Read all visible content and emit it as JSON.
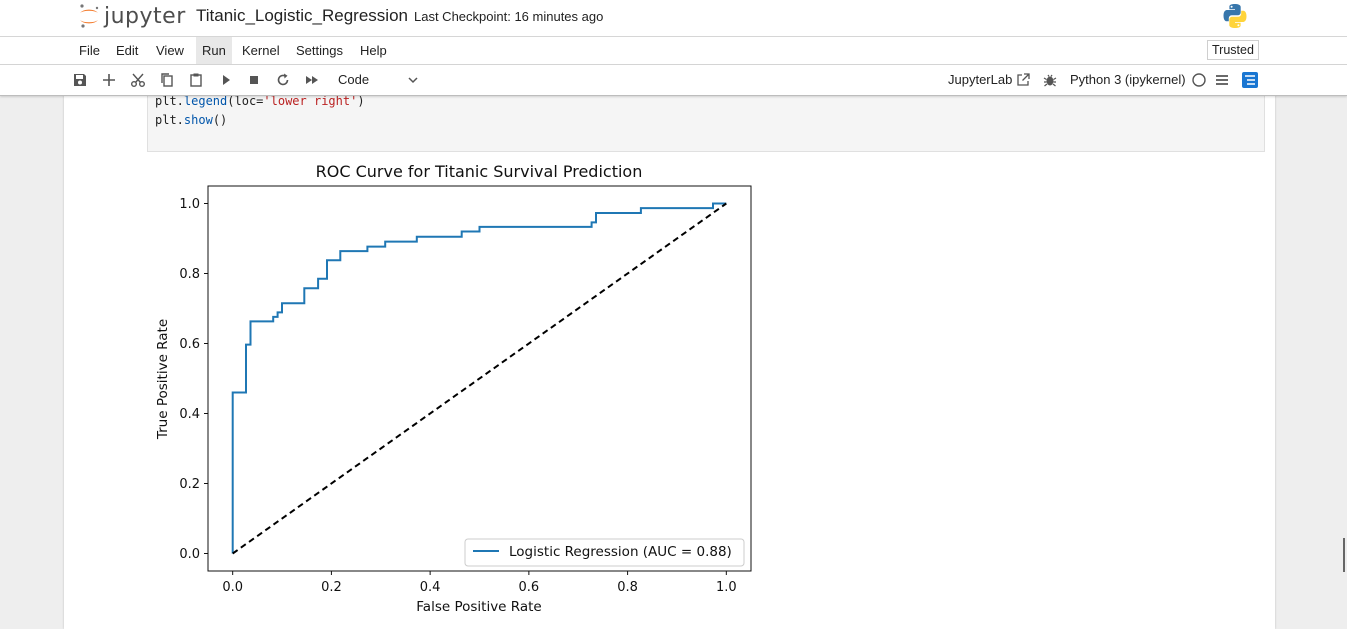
{
  "header": {
    "logo_text": "jupyter",
    "notebook_title": "Titanic_Logistic_Regression",
    "checkpoint": "Last Checkpoint: 16 minutes ago",
    "trusted": "Trusted"
  },
  "menu": [
    "File",
    "Edit",
    "View",
    "Run",
    "Kernel",
    "Settings",
    "Help"
  ],
  "menu_active": "Run",
  "toolbar": {
    "cell_type": "Code",
    "jupyterlab_label": "JupyterLab",
    "kernel_label": "Python 3 (ipykernel)"
  },
  "code": {
    "line1_obj": "plt.",
    "line1_fn": "legend",
    "line1_open": "(loc=",
    "line1_str": "'lower right'",
    "line1_close": ")",
    "line2_obj": "plt.",
    "line2_fn": "show",
    "line2_close": "()"
  },
  "colors": {
    "series": "#1f77b4",
    "accent_blue": "#1976d2"
  },
  "chart_data": {
    "type": "line",
    "title": "ROC Curve for Titanic Survival Prediction",
    "xlabel": "False Positive Rate",
    "ylabel": "True Positive Rate",
    "xlim": [
      -0.05,
      1.05
    ],
    "ylim": [
      -0.05,
      1.05
    ],
    "xticks": [
      "0.0",
      "0.2",
      "0.4",
      "0.6",
      "0.8",
      "1.0"
    ],
    "yticks": [
      "0.0",
      "0.2",
      "0.4",
      "0.6",
      "0.8",
      "1.0"
    ],
    "legend_position": "lower right",
    "grid": false,
    "series": [
      {
        "name": "Logistic Regression (AUC = 0.88)",
        "style": "solid",
        "color": "#1f77b4",
        "x": [
          0,
          0,
          0.027,
          0.027,
          0.036,
          0.036,
          0.045,
          0.045,
          0.082,
          0.082,
          0.091,
          0.091,
          0.1,
          0.1,
          0.145,
          0.145,
          0.173,
          0.173,
          0.191,
          0.191,
          0.218,
          0.218,
          0.273,
          0.273,
          0.309,
          0.309,
          0.373,
          0.373,
          0.464,
          0.464,
          0.5,
          0.5,
          0.727,
          0.727,
          0.736,
          0.736,
          0.827,
          0.827,
          0.973,
          0.973,
          1.0
        ],
        "y": [
          0,
          0.46,
          0.46,
          0.597,
          0.597,
          0.663,
          0.663,
          0.663,
          0.663,
          0.676,
          0.676,
          0.689,
          0.689,
          0.715,
          0.715,
          0.758,
          0.758,
          0.785,
          0.785,
          0.838,
          0.838,
          0.864,
          0.864,
          0.877,
          0.877,
          0.891,
          0.891,
          0.905,
          0.905,
          0.92,
          0.92,
          0.933,
          0.933,
          0.946,
          0.946,
          0.973,
          0.973,
          0.987,
          0.987,
          1.0,
          1.0
        ]
      },
      {
        "name": "",
        "style": "dashed",
        "color": "#000000",
        "x": [
          0,
          1
        ],
        "y": [
          0,
          1
        ]
      }
    ]
  }
}
